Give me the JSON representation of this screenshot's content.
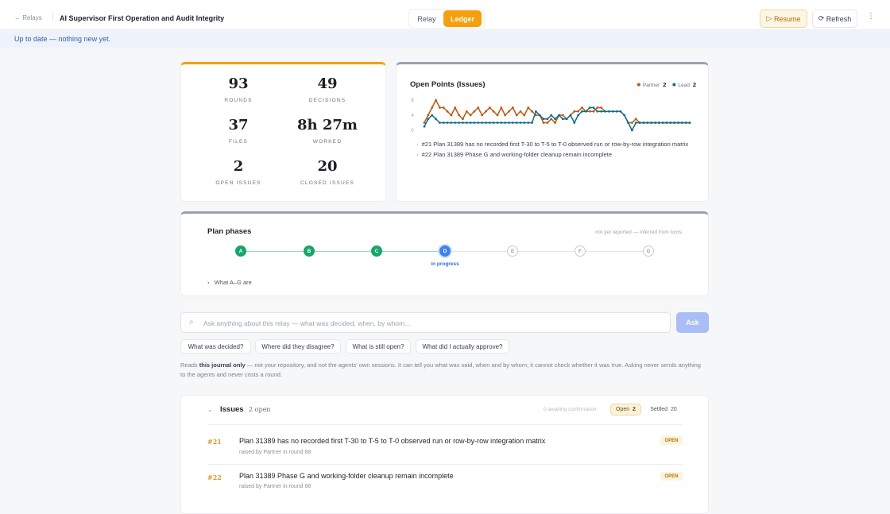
{
  "header": {
    "back": "Relays",
    "title": "AI Supervisor First Operation and Audit Integrity",
    "tabs": [
      "Relay",
      "Ledger"
    ],
    "actions": [
      "Resume",
      "Refresh"
    ]
  },
  "banner": "Up to date — nothing new yet.",
  "stats": [
    {
      "value": 93,
      "label": "ROUNDS"
    },
    {
      "value": 49,
      "label": "DECISIONS"
    },
    {
      "value": 37,
      "label": "FILES"
    },
    {
      "value": "8h 27m",
      "label": "WORKED"
    },
    {
      "value": 2,
      "label": "OPEN ISSUES"
    },
    {
      "value": 20,
      "label": "CLOSED ISSUES"
    }
  ],
  "chart_data": {
    "type": "line",
    "title": "Open Points (Issues)",
    "ylim": [
      0,
      8
    ],
    "yticks": [
      0,
      4,
      8
    ],
    "series": [
      {
        "name": "Partner",
        "color": "#c2570c",
        "current": 2,
        "values": [
          2,
          4,
          6,
          8,
          6,
          6,
          5,
          4,
          6,
          4,
          3,
          5,
          4,
          5,
          6,
          4,
          5,
          6,
          5,
          4,
          6,
          4,
          5,
          6,
          4,
          5,
          4,
          6,
          5,
          4,
          4,
          2,
          2,
          3,
          2,
          4,
          4,
          3,
          4,
          5,
          5,
          6,
          5,
          5,
          5,
          6,
          6,
          5,
          5,
          5,
          5,
          5,
          4,
          2,
          2,
          3,
          2,
          2,
          2,
          2,
          2,
          2,
          2,
          2,
          2,
          2,
          2,
          2,
          2,
          2
        ]
      },
      {
        "name": "Lead",
        "color": "#0e6e8f",
        "current": 2,
        "values": [
          1,
          3,
          4,
          3,
          2,
          2,
          2,
          2,
          2,
          2,
          2,
          2,
          2,
          2,
          2,
          2,
          2,
          2,
          2,
          2,
          2,
          2,
          2,
          2,
          2,
          2,
          2,
          2,
          2,
          5,
          4,
          3,
          3,
          4,
          3,
          4,
          3,
          3,
          4,
          2,
          4,
          5,
          5,
          6,
          6,
          5,
          5,
          5,
          5,
          5,
          5,
          5,
          4,
          2,
          0,
          2,
          2,
          2,
          2,
          2,
          2,
          2,
          2,
          2,
          2,
          2,
          2,
          2,
          2,
          2
        ]
      }
    ],
    "notes": [
      "#21 Plan 31389 has no recorded first T-30 to T-5 to T-0 observed run or row-by-row integration matrix",
      "#22 Plan 31389 Phase G and working-folder cleanup remain incomplete"
    ]
  },
  "phases": {
    "title": "Plan phases",
    "note": "not yet reported — inferred from turns",
    "steps": [
      "A",
      "B",
      "C",
      "D",
      "E",
      "F",
      "G"
    ],
    "current_label": "in progress",
    "toggle": "What A–G are"
  },
  "ask": {
    "placeholder": "Ask anything about this relay — what was decided, when, by whom...",
    "button": "Ask",
    "suggestions": [
      "What was decided?",
      "Where did they disagree?",
      "What is still open?",
      "What did I actually approve?"
    ],
    "footnote": [
      "Reads ",
      "this journal only",
      " — not your repository, and not the agents' own sessions. It can tell you what was said, when and by whom; it cannot check whether it was true. Asking never sends anything to the agents and never costs a round."
    ]
  },
  "issues": {
    "title": "Issues",
    "open_summary": "2 open",
    "awaiting": "0 awaiting confirmation",
    "filters": [
      {
        "label": "Open",
        "count": 2
      },
      {
        "label": "Settled",
        "count": 20
      }
    ],
    "items": [
      {
        "id": "#21",
        "text": "Plan 31389 has no recorded first T-30 to T-5 to T-0 observed run or row-by-row integration matrix",
        "meta": "raised by Partner in round 68",
        "status": "OPEN"
      },
      {
        "id": "#22",
        "text": "Plan 31389 Phase G and working-folder cleanup remain incomplete",
        "meta": "raised by Partner in round 68",
        "status": "OPEN"
      }
    ]
  }
}
